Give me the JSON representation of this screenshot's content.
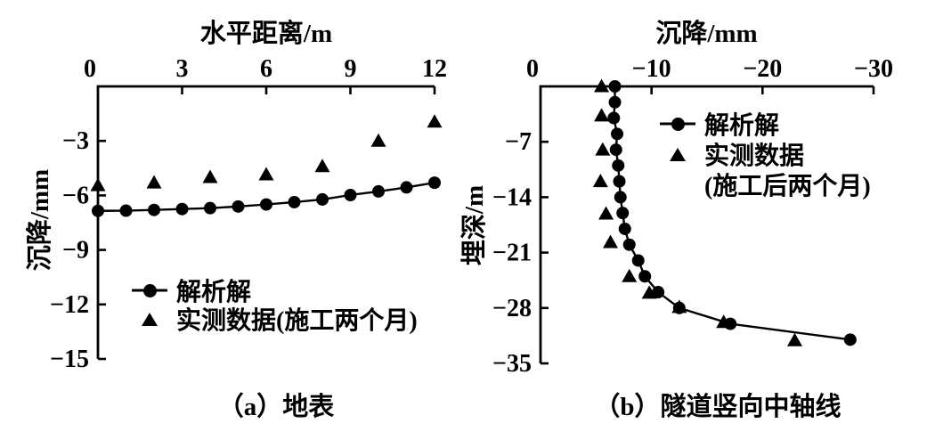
{
  "figure": {
    "background_color": "#ffffff",
    "ink_color": "#000000"
  },
  "chart_data": [
    {
      "type": "line",
      "caption": "（a）地表",
      "xlabel": "水平距离/m",
      "ylabel": "沉降/mm",
      "x_axis_position": "top",
      "xlim": [
        0,
        12
      ],
      "ylim": [
        0,
        -15
      ],
      "x_ticks": [
        0,
        3,
        6,
        9,
        12
      ],
      "x_tick_labels": [
        "0",
        "3",
        "6",
        "9",
        "12"
      ],
      "y_ticks": [
        -3,
        -6,
        -9,
        -12,
        -15
      ],
      "y_tick_labels": [
        "−3",
        "−6",
        "−9",
        "−12",
        "−15"
      ],
      "grid": false,
      "legend_position": "inside-lower-left",
      "series": [
        {
          "name": "解析解",
          "marker": "circle",
          "line": true,
          "x": [
            0,
            1,
            2,
            3,
            4,
            5,
            6,
            7,
            8,
            9,
            10,
            11,
            12
          ],
          "y": [
            -6.85,
            -6.84,
            -6.8,
            -6.75,
            -6.7,
            -6.61,
            -6.5,
            -6.37,
            -6.22,
            -5.98,
            -5.78,
            -5.56,
            -5.3
          ]
        },
        {
          "name": "实测数据(施工两个月)",
          "marker": "triangle",
          "line": false,
          "x": [
            0,
            2,
            4,
            6,
            8,
            10,
            12
          ],
          "y": [
            -5.45,
            -5.3,
            -5.0,
            -4.85,
            -4.4,
            -3.0,
            -1.95
          ]
        }
      ]
    },
    {
      "type": "line",
      "caption": "（b）隧道竖向中轴线",
      "xlabel": "沉降/mm",
      "ylabel": "埋深/m",
      "x_axis_position": "top",
      "xlim": [
        0,
        -30
      ],
      "ylim": [
        0,
        -35
      ],
      "x_ticks": [
        0,
        -10,
        -20,
        -30
      ],
      "x_tick_labels": [
        "0",
        "−10",
        "−20",
        "−30"
      ],
      "y_ticks": [
        -7,
        -14,
        -21,
        -28,
        -35
      ],
      "y_tick_labels": [
        "−7",
        "−14",
        "−21",
        "−28",
        "−35"
      ],
      "grid": false,
      "legend_position": "inside-upper-right",
      "series": [
        {
          "name": "解析解",
          "marker": "circle",
          "line": true,
          "x": [
            -6.7,
            -6.7,
            -6.6,
            -6.9,
            -6.8,
            -7.0,
            -7.1,
            -7.2,
            -7.4,
            -7.6,
            -8.0,
            -8.8,
            -9.4,
            -10.6,
            -12.5,
            -17.1,
            -27.9
          ],
          "y": [
            0,
            -2,
            -4,
            -6,
            -8,
            -10,
            -12,
            -14,
            -16,
            -18,
            -20,
            -22,
            -24,
            -26,
            -28,
            -30,
            -32
          ]
        },
        {
          "name": "实测数据",
          "name_note": "(施工后两个月)",
          "marker": "triangle",
          "line": false,
          "x": [
            -5.5,
            -5.5,
            -5.6,
            -5.4,
            -5.9,
            -6.3,
            -8.0,
            -9.8,
            -12.5,
            -16.5,
            -22.9
          ],
          "y": [
            0,
            -3.7,
            -8.0,
            -12.0,
            -16.1,
            -19.7,
            -24.0,
            -26.1,
            -27.9,
            -29.8,
            -32.1
          ]
        }
      ]
    }
  ]
}
